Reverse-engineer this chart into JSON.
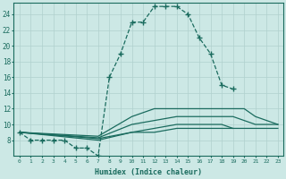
{
  "xlabel": "Humidex (Indice chaleur)",
  "bg_color": "#cce8e5",
  "line_color": "#1a6b5e",
  "grid_color": "#b0d0cd",
  "xlim": [
    -0.5,
    23.5
  ],
  "ylim": [
    6,
    25.5
  ],
  "xticks": [
    0,
    1,
    2,
    3,
    4,
    5,
    6,
    7,
    8,
    9,
    10,
    11,
    12,
    13,
    14,
    15,
    16,
    17,
    18,
    19,
    20,
    21,
    22,
    23
  ],
  "yticks": [
    8,
    10,
    12,
    14,
    16,
    18,
    20,
    22,
    24
  ],
  "ytick_labels": [
    "8",
    "10",
    "12",
    "14",
    "16",
    "18",
    "20",
    "22",
    "24"
  ],
  "dashed_x": [
    0,
    1,
    2,
    3,
    4,
    5,
    6,
    7,
    8,
    9,
    10,
    11,
    12,
    13,
    14,
    15,
    16,
    17,
    18,
    19
  ],
  "dashed_y": [
    9,
    8,
    8,
    8,
    8,
    7,
    7,
    6,
    16,
    19,
    23,
    23,
    25,
    25,
    25,
    24,
    21,
    19,
    15,
    14.5
  ],
  "solid1_x": [
    0,
    7,
    10,
    12,
    14,
    16,
    18,
    19,
    20,
    21,
    22,
    23
  ],
  "solid1_y": [
    9,
    8.5,
    11,
    12,
    12,
    12,
    12,
    12,
    12,
    11,
    10.5,
    10
  ],
  "solid2_x": [
    0,
    7,
    10,
    12,
    14,
    16,
    18,
    19,
    20,
    21,
    22,
    23
  ],
  "solid2_y": [
    9,
    8.3,
    10,
    10.5,
    11,
    11,
    11,
    11,
    10.5,
    10,
    10,
    10
  ],
  "solid3_x": [
    0,
    7,
    10,
    12,
    14,
    16,
    18,
    19
  ],
  "solid3_y": [
    9,
    8.0,
    9,
    9.5,
    10,
    10,
    10,
    9.5
  ],
  "solid4_x": [
    0,
    7,
    10,
    12,
    14,
    16,
    18,
    19,
    20,
    21,
    22,
    23
  ],
  "solid4_y": [
    9,
    8.2,
    9,
    9,
    9.5,
    9.5,
    9.5,
    9.5,
    9.5,
    9.5,
    9.5,
    9.5
  ]
}
